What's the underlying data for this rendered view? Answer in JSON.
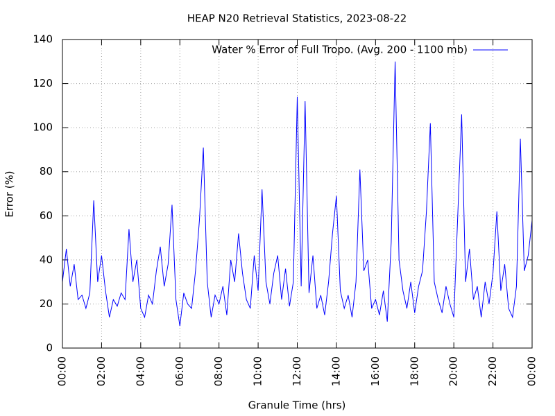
{
  "chart_data": {
    "type": "line",
    "title": "HEAP N20 Retrieval Statistics, 2023-08-22",
    "xlabel": "Granule Time (hrs)",
    "ylabel": "Error (%)",
    "x": [
      0,
      0.2,
      0.4,
      0.6,
      0.8,
      1,
      1.2,
      1.4,
      1.6,
      1.8,
      2,
      2.2,
      2.4,
      2.6,
      2.8,
      3,
      3.2,
      3.4,
      3.6,
      3.8,
      4,
      4.2,
      4.4,
      4.6,
      4.8,
      5,
      5.2,
      5.4,
      5.6,
      5.8,
      6,
      6.2,
      6.4,
      6.6,
      6.8,
      7,
      7.2,
      7.4,
      7.6,
      7.8,
      8,
      8.2,
      8.4,
      8.6,
      8.8,
      9,
      9.2,
      9.4,
      9.6,
      9.8,
      10,
      10.2,
      10.4,
      10.6,
      10.8,
      11,
      11.2,
      11.4,
      11.6,
      11.8,
      12,
      12.2,
      12.4,
      12.6,
      12.8,
      13,
      13.2,
      13.4,
      13.6,
      13.8,
      14,
      14.2,
      14.4,
      14.6,
      14.8,
      15,
      15.2,
      15.4,
      15.6,
      15.8,
      16,
      16.2,
      16.4,
      16.6,
      16.8,
      17,
      17.2,
      17.4,
      17.6,
      17.8,
      18,
      18.2,
      18.4,
      18.6,
      18.8,
      19,
      19.2,
      19.4,
      19.6,
      19.8,
      20,
      20.2,
      20.4,
      20.6,
      20.8,
      21,
      21.2,
      21.4,
      21.6,
      21.8,
      22,
      22.2,
      22.4,
      22.6,
      22.8,
      23,
      23.2,
      23.4,
      23.6,
      23.8,
      24
    ],
    "series": [
      {
        "name": "Water % Error of Full Tropo. (Avg. 200 - 1100 mb)",
        "color": "#0000ff",
        "values": [
          30,
          45,
          28,
          38,
          22,
          24,
          18,
          25,
          67,
          30,
          42,
          26,
          14,
          22,
          19,
          25,
          22,
          54,
          30,
          40,
          18,
          14,
          24,
          20,
          35,
          46,
          28,
          38,
          65,
          22,
          10,
          25,
          20,
          18,
          35,
          58,
          91,
          30,
          14,
          24,
          20,
          28,
          15,
          40,
          30,
          52,
          34,
          22,
          18,
          42,
          26,
          72,
          30,
          20,
          34,
          42,
          22,
          36,
          19,
          30,
          114,
          28,
          112,
          25,
          42,
          18,
          24,
          15,
          30,
          52,
          69,
          26,
          18,
          24,
          14,
          30,
          81,
          35,
          40,
          18,
          22,
          15,
          26,
          12,
          48,
          130,
          40,
          26,
          18,
          30,
          16,
          28,
          35,
          62,
          102,
          30,
          22,
          16,
          28,
          20,
          14,
          60,
          106,
          30,
          45,
          22,
          28,
          14,
          30,
          20,
          34,
          62,
          26,
          38,
          18,
          14,
          28,
          95,
          35,
          42,
          58
        ]
      }
    ],
    "xlim": [
      0,
      24
    ],
    "xticks": [
      {
        "value": 0,
        "label": "00:00"
      },
      {
        "value": 2,
        "label": "02:00"
      },
      {
        "value": 4,
        "label": "04:00"
      },
      {
        "value": 6,
        "label": "06:00"
      },
      {
        "value": 8,
        "label": "08:00"
      },
      {
        "value": 10,
        "label": "10:00"
      },
      {
        "value": 12,
        "label": "12:00"
      },
      {
        "value": 14,
        "label": "14:00"
      },
      {
        "value": 16,
        "label": "16:00"
      },
      {
        "value": 18,
        "label": "18:00"
      },
      {
        "value": 20,
        "label": "20:00"
      },
      {
        "value": 22,
        "label": "22:00"
      },
      {
        "value": 24,
        "label": "00:00"
      }
    ],
    "ylim": [
      0,
      140
    ],
    "yticks": [
      0,
      20,
      40,
      60,
      80,
      100,
      120,
      140
    ],
    "grid": true,
    "legend": "top-right"
  }
}
